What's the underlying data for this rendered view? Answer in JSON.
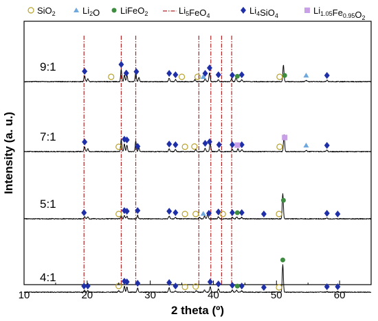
{
  "chart_data": {
    "type": "line",
    "xlabel": "2 theta (º)",
    "ylabel": "Intensity (a. u.)",
    "xlim": [
      10,
      65
    ],
    "x_ticks": [
      "10",
      "20",
      "30",
      "40",
      "50",
      "60"
    ],
    "y_ticks_shown": false,
    "grid": false,
    "legend_position": "top",
    "legend": [
      {
        "key": "SiO2",
        "text": "SiO",
        "sub": "2",
        "post": "",
        "marker": "circle-open",
        "color": "#b8a12a"
      },
      {
        "key": "Li2O",
        "text": "Li",
        "sub": "2",
        "post": "O",
        "marker": "triangle",
        "color": "#6fa8dc"
      },
      {
        "key": "LiFeO2",
        "text": "LiFeO",
        "sub": "2",
        "post": "",
        "marker": "circle-filled",
        "color": "#3d8c40"
      },
      {
        "key": "Li5FeO4",
        "text": "Li",
        "sub": "5",
        "post": "FeO",
        "sub2": "4",
        "marker": "dash-dot-line",
        "color": "#b22222"
      },
      {
        "key": "Li4SiO4",
        "text": "Li",
        "sub": "4",
        "post": "SiO",
        "sub2": "4",
        "marker": "diamond",
        "color": "#1f2fa8"
      },
      {
        "key": "Li1.05Fe0.95O2",
        "text": "Li",
        "sub": "1.05",
        "post": "Fe",
        "sub2": "0.95",
        "post2": "O",
        "sub3": "2",
        "marker": "square",
        "color": "#c9a0e8"
      }
    ],
    "reference_lines_li5feo4": [
      19.5,
      25.4,
      27.7,
      37.7,
      39.6,
      41.3,
      42.9
    ],
    "series": [
      {
        "name": "9:1",
        "baseline": 0.88,
        "peaks": [
          [
            19.6,
            0.08,
            0.1
          ],
          [
            20.1,
            0.04,
            0.1
          ],
          [
            25.4,
            0.18,
            0.09
          ],
          [
            25.9,
            0.1,
            0.09
          ],
          [
            26.3,
            0.1,
            0.09
          ],
          [
            27.7,
            0.14,
            0.09
          ],
          [
            28.2,
            0.06,
            0.09
          ],
          [
            33.0,
            0.05,
            0.1
          ],
          [
            34.0,
            0.03,
            0.1
          ],
          [
            37.1,
            0.03,
            0.1
          ],
          [
            38.7,
            0.05,
            0.1
          ],
          [
            39.4,
            0.13,
            0.1
          ],
          [
            40.8,
            0.03,
            0.1
          ],
          [
            42.9,
            0.04,
            0.1
          ],
          [
            43.6,
            0.06,
            0.1
          ],
          [
            44.5,
            0.03,
            0.1
          ],
          [
            51.1,
            0.24,
            0.09
          ],
          [
            54.7,
            0.02,
            0.1
          ],
          [
            58.0,
            0.02,
            0.1
          ]
        ],
        "markers": [
          {
            "type": "Li4SiO4",
            "x": [
              19.6,
              25.4,
              26.2,
              27.8,
              33.0,
              34.0,
              38.7,
              39.4,
              40.8,
              43.0,
              44.5,
              58.0
            ]
          },
          {
            "type": "SiO2",
            "x": [
              23.8,
              35.0,
              37.5,
              50.5
            ]
          },
          {
            "type": "Li2O",
            "x": [
              38.4,
              54.7
            ]
          },
          {
            "type": "LiFeO2",
            "x": [
              43.8,
              51.3
            ]
          }
        ]
      },
      {
        "name": "7:1",
        "baseline": 1.9,
        "peaks": [
          [
            19.6,
            0.07,
            0.1
          ],
          [
            20.1,
            0.04,
            0.1
          ],
          [
            25.4,
            0.17,
            0.09
          ],
          [
            25.9,
            0.11,
            0.09
          ],
          [
            26.3,
            0.1,
            0.09
          ],
          [
            27.7,
            0.15,
            0.09
          ],
          [
            28.2,
            0.06,
            0.09
          ],
          [
            33.0,
            0.04,
            0.1
          ],
          [
            34.0,
            0.03,
            0.1
          ],
          [
            37.2,
            0.03,
            0.1
          ],
          [
            38.7,
            0.05,
            0.1
          ],
          [
            39.5,
            0.12,
            0.1
          ],
          [
            40.9,
            0.03,
            0.1
          ],
          [
            43.0,
            0.03,
            0.1
          ],
          [
            43.9,
            0.04,
            0.1
          ],
          [
            44.5,
            0.03,
            0.1
          ],
          [
            51.2,
            0.25,
            0.09
          ],
          [
            54.7,
            0.02,
            0.1
          ],
          [
            58.0,
            0.02,
            0.1
          ]
        ],
        "markers": [
          {
            "type": "Li4SiO4",
            "x": [
              19.6,
              25.9,
              26.3,
              28.0,
              33.0,
              34.0,
              38.7,
              39.4,
              40.9,
              43.0,
              44.5,
              58.0
            ]
          },
          {
            "type": "SiO2",
            "x": [
              25.0,
              35.5,
              37.0,
              50.5
            ]
          },
          {
            "type": "Li2O",
            "x": [
              54.7
            ]
          },
          {
            "type": "Li1.05Fe0.95O2",
            "x": [
              43.8,
              51.3
            ]
          }
        ]
      },
      {
        "name": "5:1",
        "baseline": 2.88,
        "peaks": [
          [
            19.6,
            0.03,
            0.1
          ],
          [
            20.1,
            0.03,
            0.1
          ],
          [
            25.4,
            0.05,
            0.09
          ],
          [
            25.9,
            0.05,
            0.09
          ],
          [
            26.3,
            0.04,
            0.09
          ],
          [
            28.0,
            0.05,
            0.09
          ],
          [
            33.0,
            0.04,
            0.1
          ],
          [
            34.0,
            0.02,
            0.1
          ],
          [
            37.8,
            0.02,
            0.1
          ],
          [
            38.6,
            0.04,
            0.1
          ],
          [
            39.1,
            0.07,
            0.1
          ],
          [
            40.8,
            0.03,
            0.1
          ],
          [
            43.0,
            0.02,
            0.1
          ],
          [
            43.7,
            0.03,
            0.1
          ],
          [
            44.5,
            0.02,
            0.1
          ],
          [
            51.0,
            0.37,
            0.09
          ],
          [
            58.0,
            0.01,
            0.1
          ]
        ],
        "markers": [
          {
            "type": "Li4SiO4",
            "x": [
              19.5,
              25.9,
              26.3,
              28.0,
              33.0,
              34.0,
              39.3,
              40.8,
              43.0,
              44.5,
              48.0,
              58.0,
              59.7
            ]
          },
          {
            "type": "SiO2",
            "x": [
              25.0,
              35.5,
              37.2,
              41.5,
              50.4
            ]
          },
          {
            "type": "Li2O",
            "x": [
              38.4
            ]
          },
          {
            "type": "LiFeO2",
            "x": [
              43.8,
              51.1
            ]
          }
        ]
      },
      {
        "name": "4:1",
        "baseline": 3.95,
        "peaks": [
          [
            19.6,
            0.03,
            0.1
          ],
          [
            20.1,
            0.02,
            0.1
          ],
          [
            25.0,
            0.02,
            0.1
          ],
          [
            25.9,
            0.09,
            0.09
          ],
          [
            26.3,
            0.08,
            0.09
          ],
          [
            28.0,
            0.06,
            0.09
          ],
          [
            33.0,
            0.07,
            0.1
          ],
          [
            34.0,
            0.02,
            0.1
          ],
          [
            35.6,
            0.01,
            0.1
          ],
          [
            37.3,
            0.02,
            0.1
          ],
          [
            38.6,
            0.03,
            0.1
          ],
          [
            39.5,
            0.08,
            0.1
          ],
          [
            40.8,
            0.05,
            0.1
          ],
          [
            43.0,
            0.03,
            0.1
          ],
          [
            43.7,
            0.03,
            0.1
          ],
          [
            44.5,
            0.02,
            0.1
          ],
          [
            51.0,
            0.4,
            0.09
          ],
          [
            58.0,
            0.01,
            0.1
          ],
          [
            59.7,
            0.01,
            0.1
          ]
        ],
        "markers": [
          {
            "type": "Li4SiO4",
            "x": [
              19.5,
              20.1,
              25.9,
              26.3,
              28.0,
              33.0,
              34.0,
              39.5,
              40.8,
              43.0,
              44.5,
              48.0,
              58.0,
              59.7
            ]
          },
          {
            "type": "SiO2",
            "x": [
              25.0,
              35.5,
              37.2,
              50.4
            ]
          },
          {
            "type": "LiFeO2",
            "x": [
              43.8,
              51.0
            ]
          }
        ]
      }
    ]
  }
}
